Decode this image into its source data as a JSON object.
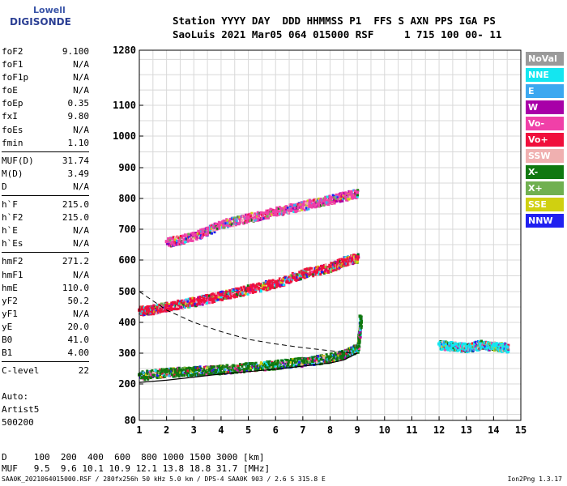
{
  "logo": {
    "line1": "Lowell",
    "line2": "DIGISONDE"
  },
  "header": {
    "line1": "Station YYYY DAY  DDD HHMMSS P1  FFS S AXN PPS IGA PS",
    "line2": "SaoLuis 2021 Mar05 064 015000 RSF     1 715 100 00- 11"
  },
  "params": {
    "group1": [
      {
        "name": "foF2",
        "value": "9.100"
      },
      {
        "name": "foF1",
        "value": "N/A"
      },
      {
        "name": "foF1p",
        "value": "N/A"
      },
      {
        "name": "foE",
        "value": "N/A"
      },
      {
        "name": "foEp",
        "value": "0.35"
      },
      {
        "name": "fxI",
        "value": "9.80"
      },
      {
        "name": "foEs",
        "value": "N/A"
      },
      {
        "name": "fmin",
        "value": "1.10"
      }
    ],
    "group2": [
      {
        "name": "MUF(D)",
        "value": "31.74"
      },
      {
        "name": "M(D)",
        "value": "3.49"
      },
      {
        "name": "D",
        "value": "N/A"
      }
    ],
    "group3": [
      {
        "name": "h`F",
        "value": "215.0"
      },
      {
        "name": "h`F2",
        "value": "215.0"
      },
      {
        "name": "h`E",
        "value": "N/A"
      },
      {
        "name": "h`Es",
        "value": "N/A"
      }
    ],
    "group4": [
      {
        "name": "hmF2",
        "value": "271.2"
      },
      {
        "name": "hmF1",
        "value": "N/A"
      },
      {
        "name": "hmE",
        "value": "110.0"
      },
      {
        "name": "yF2",
        "value": "50.2"
      },
      {
        "name": "yF1",
        "value": "N/A"
      },
      {
        "name": "yE",
        "value": "20.0"
      },
      {
        "name": "B0",
        "value": "41.0"
      },
      {
        "name": "B1",
        "value": "4.00"
      }
    ],
    "group5": [
      {
        "name": "C-level",
        "value": "22"
      }
    ]
  },
  "auto": {
    "line1": "Auto:",
    "line2": "Artist5",
    "line3": "500200"
  },
  "legend": [
    {
      "label": "NoVal",
      "color": "#9a9a9a"
    },
    {
      "label": "NNE",
      "color": "#14e6f0"
    },
    {
      "label": "E",
      "color": "#3ca8f0"
    },
    {
      "label": "W",
      "color": "#a800a8"
    },
    {
      "label": "Vo-",
      "color": "#f040a8"
    },
    {
      "label": "Vo+",
      "color": "#f0103c"
    },
    {
      "label": "SSW",
      "color": "#f0b0b0"
    },
    {
      "label": "X-",
      "color": "#107810"
    },
    {
      "label": "X+",
      "color": "#70b050"
    },
    {
      "label": "SSE",
      "color": "#d0d010"
    },
    {
      "label": "NNW",
      "color": "#2020f0"
    }
  ],
  "bottom_table": {
    "d_row": "D     100  200  400  600  800 1000 1500 3000 [km]",
    "muf_row": "MUF   9.5  9.6 10.1 10.9 12.1 13.8 18.8 31.7 [MHz]"
  },
  "footer": {
    "left": "SAA0K_2021064015000.RSF / 280fx256h 50 kHz 5.0 km / DPS-4 SAA0K 903 / 2.6 S 315.8 E",
    "right": "Ion2Png 1.3.17"
  },
  "chart_data": {
    "type": "scatter",
    "title": "",
    "xlabel": "",
    "ylabel": "",
    "x_ticks": [
      "1",
      "2",
      "3",
      "4",
      "5",
      "6",
      "7",
      "8",
      "9",
      "10",
      "11",
      "12",
      "13",
      "14",
      "15"
    ],
    "y_ticks": [
      "80",
      "200",
      "300",
      "400",
      "500",
      "600",
      "700",
      "800",
      "900",
      "1000",
      "1100",
      "1280"
    ],
    "xlim": [
      1,
      15
    ],
    "ylim": [
      80,
      1280
    ],
    "y_scale": "non-linear (compressed below 200 km and above 1100 km)",
    "grid": true,
    "series": [
      {
        "name": "X-",
        "color": "#107810",
        "x": [
          1.0,
          2.0,
          3.0,
          4.0,
          5.0,
          6.0,
          7.0,
          8.0,
          8.5,
          9.0,
          9.1
        ],
        "y": [
          230,
          240,
          245,
          250,
          258,
          265,
          275,
          288,
          300,
          320,
          420
        ]
      },
      {
        "name": "Vo+",
        "color": "#f0103c",
        "x": [
          1.0,
          1.5,
          2.0,
          3.0,
          4.0,
          5.0,
          6.0,
          7.0,
          8.0,
          8.5,
          9.0
        ],
        "y": [
          440,
          445,
          455,
          470,
          490,
          510,
          530,
          560,
          580,
          600,
          610
        ]
      },
      {
        "name": "Vo-",
        "color": "#f040a8",
        "x": [
          2.0,
          3.0,
          4.0,
          5.0,
          6.0,
          7.0,
          8.0,
          9.0
        ],
        "y": [
          660,
          680,
          720,
          740,
          760,
          780,
          800,
          820
        ]
      },
      {
        "name": "NNE",
        "color": "#14e6f0",
        "x": [
          12.0,
          12.5,
          13.0,
          13.5,
          14.0,
          14.5
        ],
        "y": [
          330,
          325,
          320,
          330,
          325,
          320
        ]
      }
    ],
    "profile_curve": {
      "x": [
        1.0,
        2.0,
        3.0,
        4.0,
        5.0,
        6.0,
        7.0,
        8.0,
        8.5,
        9.0
      ],
      "y": [
        205,
        212,
        222,
        232,
        240,
        248,
        258,
        268,
        278,
        300
      ]
    },
    "dashed_curve": {
      "x": [
        1.0,
        2.0,
        3.0,
        4.0,
        5.0,
        6.0,
        7.0,
        8.0,
        9.0
      ],
      "y": [
        500,
        440,
        400,
        370,
        345,
        330,
        318,
        308,
        298
      ]
    }
  }
}
